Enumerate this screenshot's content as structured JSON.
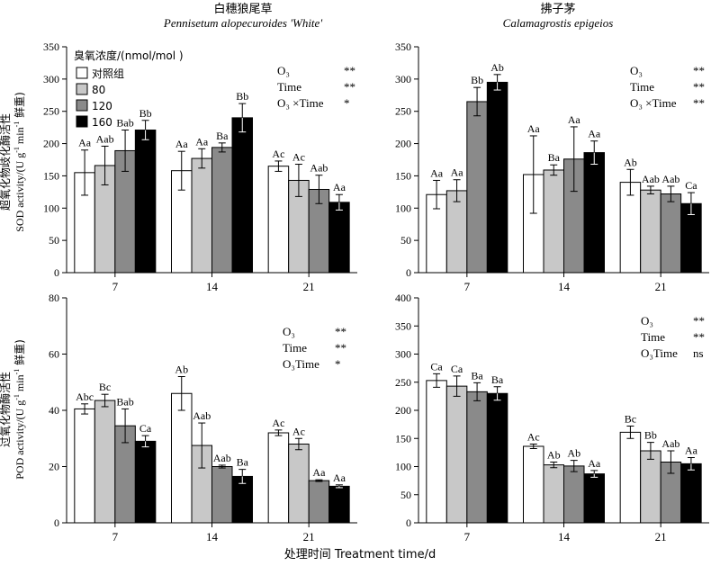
{
  "figure": {
    "xlabel": "处理时间 Treatment time/d",
    "ylabel_top": "超氧化物歧化酶活性",
    "ylabel_top_sub": "SOD activity/(U g",
    "ylabel_bottom": "过氧化物酶活性",
    "ylabel_bottom_sub": "POD activity/(U g",
    "ylabel_unit_tail": " min",
    "ylabel_unit_end": " 鲜重)",
    "ylabel_exp": "-1",
    "legend_title": "臭氧浓度/(nmol/mol )",
    "legend_entries": [
      "对照组",
      "80",
      "120",
      "160"
    ],
    "colors": [
      "#ffffff",
      "#c8c8c8",
      "#8a8a8a",
      "#000000"
    ]
  },
  "chart_data": [
    {
      "type": "bar",
      "panel": "top-left",
      "title": "白穗狼尾草",
      "subtitle": "Pennisetum alopecuroides 'White'",
      "categories": [
        "7",
        "14",
        "21"
      ],
      "ylim": [
        0,
        350
      ],
      "yticks": [
        0,
        50,
        100,
        150,
        200,
        250,
        300,
        350
      ],
      "series": [
        {
          "name": "对照组",
          "values": [
            155,
            158,
            165
          ],
          "errors": [
            35,
            30,
            8
          ]
        },
        {
          "name": "80",
          "values": [
            166,
            177,
            143
          ],
          "errors": [
            30,
            15,
            25
          ]
        },
        {
          "name": "120",
          "values": [
            189,
            194,
            129
          ],
          "errors": [
            32,
            7,
            22
          ]
        },
        {
          "name": "160",
          "values": [
            221,
            240,
            109
          ],
          "errors": [
            15,
            22,
            12
          ]
        }
      ],
      "labels": [
        [
          "Aa",
          "Aab",
          "Bab",
          "Bb"
        ],
        [
          "Aa",
          "Aa",
          "Ba",
          "Bb"
        ],
        [
          "Ac",
          "Ac",
          "Aab",
          "Aa"
        ]
      ],
      "stats": [
        {
          "term": "O₃",
          "sig": "**"
        },
        {
          "term": "Time",
          "sig": "**"
        },
        {
          "term": "O₃ ×Time",
          "sig": "*"
        }
      ]
    },
    {
      "type": "bar",
      "panel": "top-right",
      "title": "拂子茅",
      "subtitle": "Calamagrostis epigeios",
      "categories": [
        "7",
        "14",
        "21"
      ],
      "ylim": [
        0,
        350
      ],
      "yticks": [
        0,
        50,
        100,
        150,
        200,
        250,
        300,
        350
      ],
      "series": [
        {
          "name": "对照组",
          "values": [
            121,
            152,
            140
          ],
          "errors": [
            22,
            60,
            20
          ]
        },
        {
          "name": "80",
          "values": [
            127,
            159,
            128
          ],
          "errors": [
            17,
            8,
            6
          ]
        },
        {
          "name": "120",
          "values": [
            265,
            176,
            122
          ],
          "errors": [
            22,
            50,
            12
          ]
        },
        {
          "name": "160",
          "values": [
            295,
            186,
            107
          ],
          "errors": [
            12,
            18,
            17
          ]
        }
      ],
      "labels": [
        [
          "Aa",
          "Aa",
          "Bb",
          "Ab"
        ],
        [
          "Aa",
          "Ba",
          "Aa",
          "Aa"
        ],
        [
          "Ab",
          "Aab",
          "Aab",
          "Ca"
        ]
      ],
      "stats": [
        {
          "term": "O₃",
          "sig": "**"
        },
        {
          "term": "Time",
          "sig": "**"
        },
        {
          "term": "O₃ ×Time",
          "sig": "**"
        }
      ]
    },
    {
      "type": "bar",
      "panel": "bottom-left",
      "categories": [
        "7",
        "14",
        "21"
      ],
      "ylim": [
        0,
        80
      ],
      "yticks": [
        0,
        20,
        40,
        60,
        80
      ],
      "series": [
        {
          "name": "对照组",
          "values": [
            40.5,
            46,
            32
          ],
          "errors": [
            1.8,
            6,
            1
          ]
        },
        {
          "name": "80",
          "values": [
            43.5,
            27.5,
            28
          ],
          "errors": [
            2.2,
            8,
            2
          ]
        },
        {
          "name": "120",
          "values": [
            34.5,
            20,
            15
          ],
          "errors": [
            6,
            0.5,
            0.3
          ]
        },
        {
          "name": "160",
          "values": [
            29,
            16.5,
            13
          ],
          "errors": [
            2,
            2.5,
            0.5
          ]
        }
      ],
      "labels": [
        [
          "Abc",
          "Bc",
          "Bab",
          "Ca"
        ],
        [
          "Ab",
          "Aab",
          "Aab",
          "Ba"
        ],
        [
          "Ac",
          "Ac",
          "Aa",
          "Aa"
        ]
      ],
      "stats": [
        {
          "term": "O₃",
          "sig": "**"
        },
        {
          "term": "Time",
          "sig": "**"
        },
        {
          "term": "O₃Time",
          "sig": "*"
        }
      ]
    },
    {
      "type": "bar",
      "panel": "bottom-right",
      "categories": [
        "7",
        "14",
        "21"
      ],
      "ylim": [
        0,
        400
      ],
      "yticks": [
        0,
        50,
        100,
        150,
        200,
        250,
        300,
        350,
        400
      ],
      "series": [
        {
          "name": "对照组",
          "values": [
            253,
            136,
            161
          ],
          "errors": [
            12,
            4,
            11
          ]
        },
        {
          "name": "80",
          "values": [
            243,
            103,
            128
          ],
          "errors": [
            18,
            5,
            15
          ]
        },
        {
          "name": "120",
          "values": [
            233,
            101,
            108
          ],
          "errors": [
            16,
            10,
            20
          ]
        },
        {
          "name": "160",
          "values": [
            230,
            87,
            105
          ],
          "errors": [
            12,
            6,
            11
          ]
        }
      ],
      "labels": [
        [
          "Ca",
          "Ca",
          "Ba",
          "Ba"
        ],
        [
          "Ac",
          "Ab",
          "Ab",
          "Aa"
        ],
        [
          "Bc",
          "Bb",
          "Aab",
          "Aa"
        ]
      ],
      "stats": [
        {
          "term": "O₃",
          "sig": "**"
        },
        {
          "term": "Time",
          "sig": "**"
        },
        {
          "term": "O₃Time",
          "sig": "ns"
        }
      ]
    }
  ]
}
